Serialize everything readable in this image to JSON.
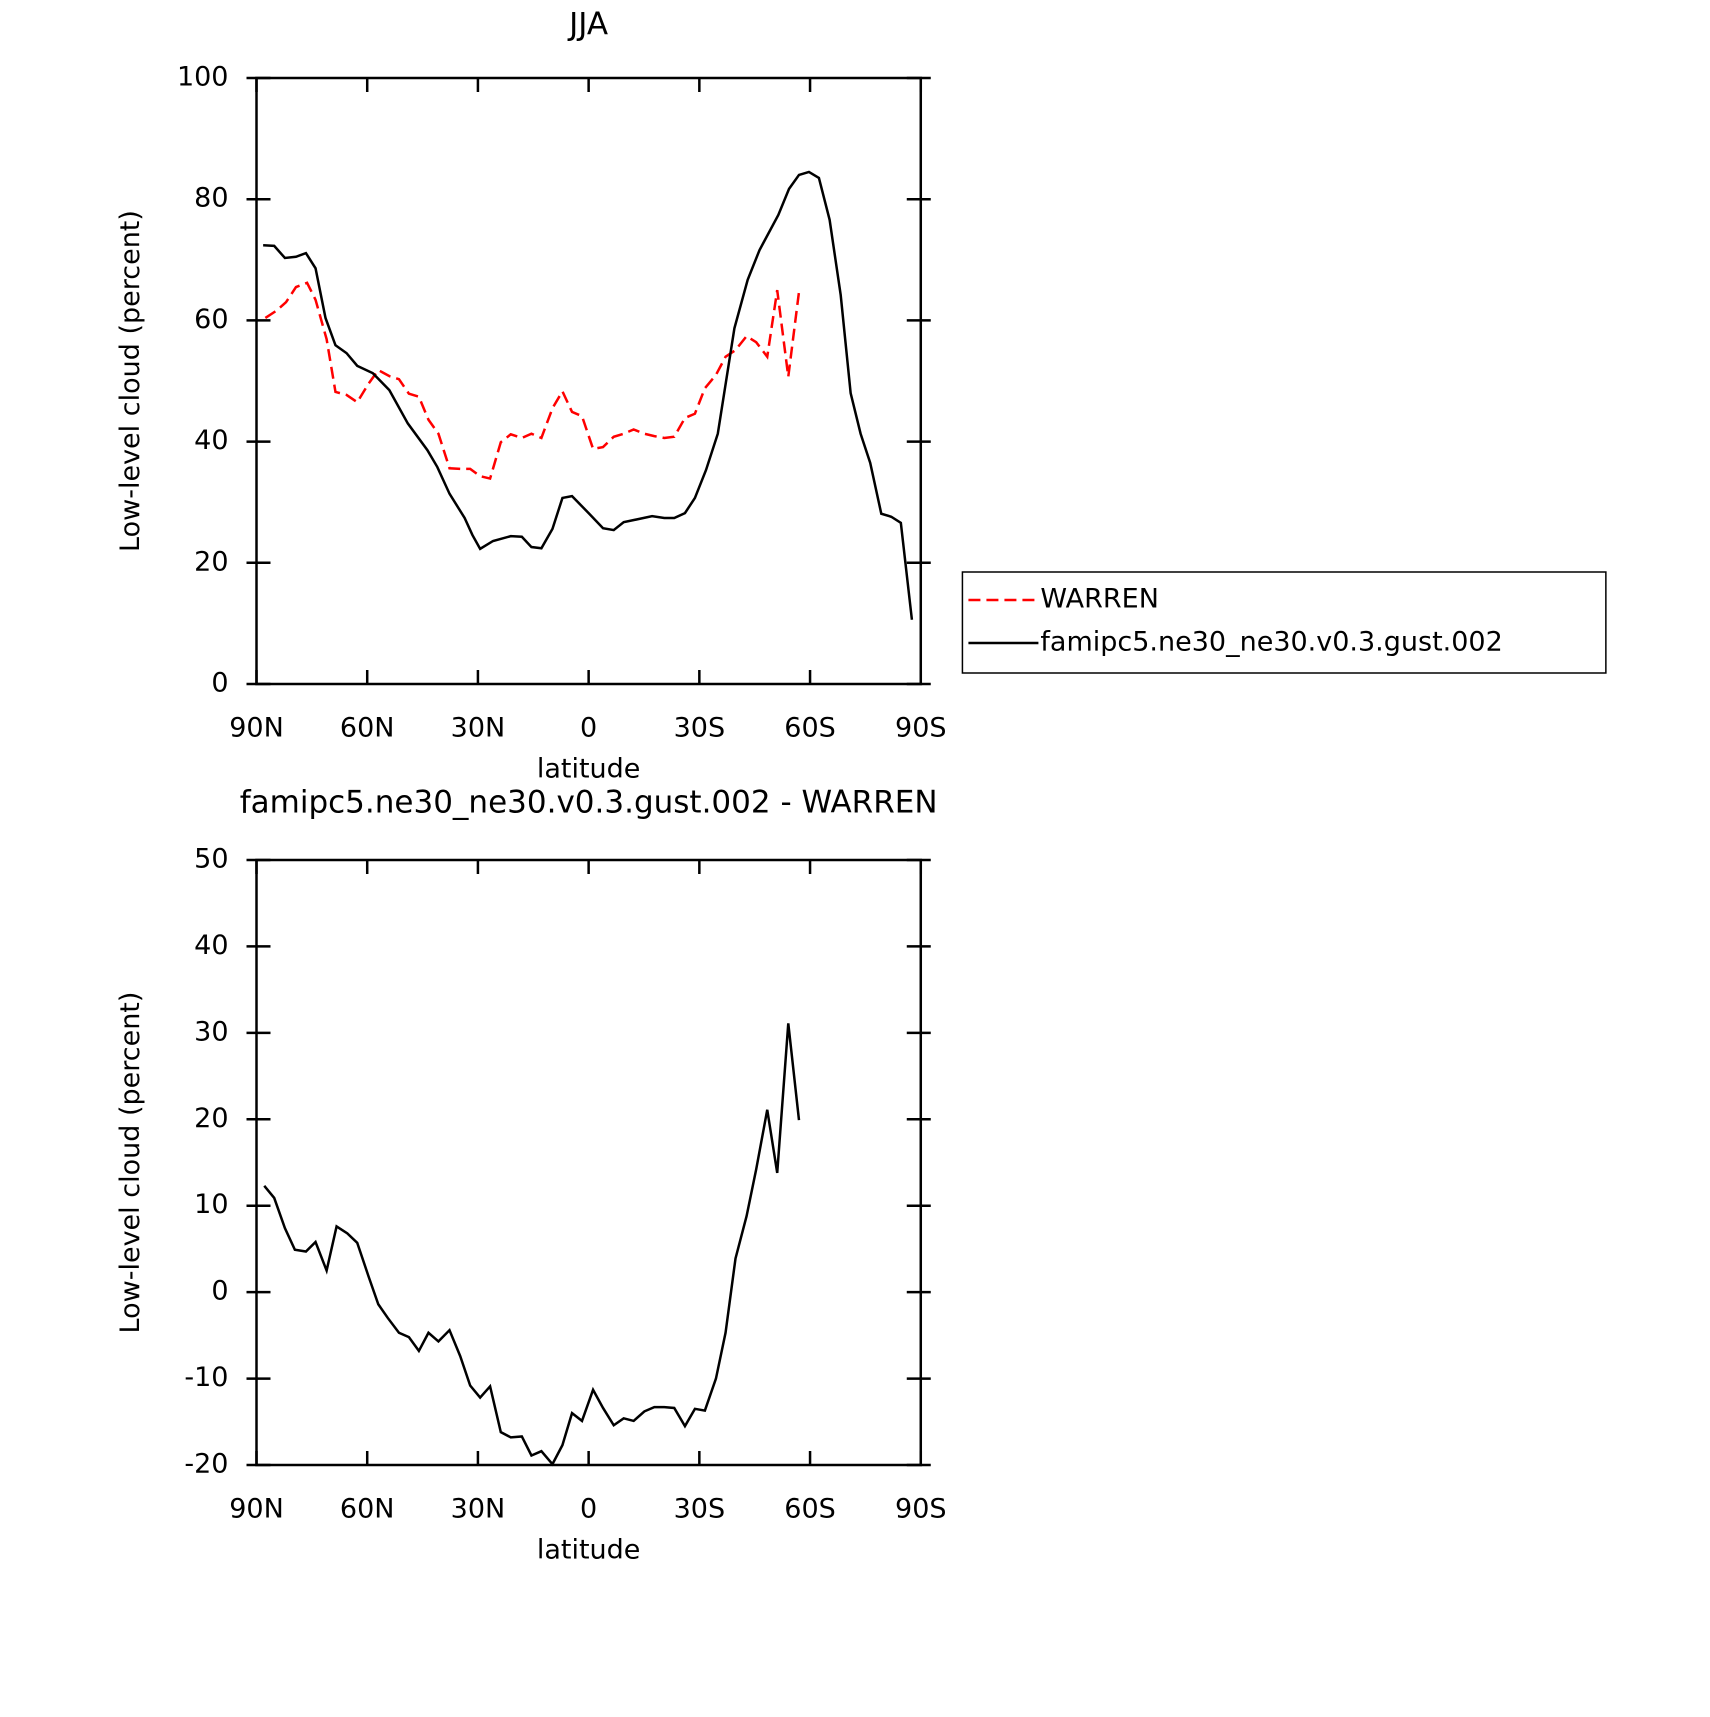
{
  "chart_data": [
    {
      "type": "line",
      "title": "JJA",
      "xlabel": "latitude",
      "ylabel": "Low-level cloud (percent)",
      "xlim": [
        90,
        -90
      ],
      "xticks": [
        {
          "value": 90,
          "label": "90N"
        },
        {
          "value": 60,
          "label": "60N"
        },
        {
          "value": 30,
          "label": "30N"
        },
        0,
        {
          "value": -30,
          "label": "30S"
        },
        {
          "value": -60,
          "label": "60S"
        },
        {
          "value": -90,
          "label": "90S"
        }
      ],
      "ylim": [
        0,
        100
      ],
      "yticks": [
        0,
        20,
        40,
        60,
        80,
        100
      ],
      "legend": "right",
      "series": [
        {
          "name": "WARREN",
          "color": "#ff0000",
          "dashed": true,
          "x": [
            87.6,
            84.6,
            82,
            79.3,
            76.3,
            74,
            71,
            68.6,
            65.6,
            62.7,
            59.7,
            57,
            54,
            51.4,
            48.7,
            46,
            43.4,
            40.7,
            37.7,
            34.8,
            32.1,
            29.4,
            26.7,
            23.8,
            21.1,
            18.1,
            15.5,
            12.8,
            9.8,
            7.1,
            4.5,
            1.8,
            -1.2,
            -3.9,
            -6.8,
            -9.5,
            -12.2,
            -15.1,
            -17.8,
            -20.5,
            -23.2,
            -26.1,
            -28.8,
            -31.5,
            -34.5,
            -37.1,
            -39.8,
            -42.8,
            -45.4,
            -48.4,
            -51.1,
            -54.1,
            -57
          ],
          "values": [
            60.4,
            61.6,
            63,
            65.5,
            66.2,
            63.4,
            56.9,
            48.2,
            47.7,
            46.5,
            49.5,
            51.8,
            50.8,
            50.3,
            47.9,
            47.4,
            43.6,
            41.3,
            35.6,
            35.5,
            35.5,
            34.3,
            33.9,
            39.9,
            41.2,
            40.6,
            41.3,
            40.6,
            45.5,
            48.3,
            44.9,
            44.2,
            38.8,
            39.1,
            40.8,
            41.3,
            42,
            41.3,
            40.9,
            40.6,
            40.8,
            43.9,
            44.6,
            48.8,
            51,
            54,
            55.1,
            57.4,
            56.4,
            54,
            65,
            50.7,
            64.7
          ]
        },
        {
          "name": "famipc5.ne30_ne30.v0.3.gust.002",
          "color": "#000000",
          "dashed": false,
          "x": [
            88.2,
            85.2,
            82.3,
            79.3,
            76.6,
            74,
            71.3,
            68.6,
            65.6,
            62.7,
            58.5,
            54,
            49,
            43.7,
            41,
            37.7,
            33.6,
            31.5,
            29.4,
            25.9,
            21.1,
            18.1,
            15.5,
            12.8,
            9.8,
            7.1,
            4.5,
            0,
            -3.9,
            -6.8,
            -9.5,
            -17.2,
            -20.5,
            -23.2,
            -26.1,
            -28.8,
            -31.8,
            -35,
            -39.5,
            -43.1,
            -46.3,
            -51.4,
            -54.3,
            -57,
            -59.7,
            -62.4,
            -65.3,
            -68.3,
            -71,
            -73.7,
            -76.3,
            -79.3,
            -82,
            -84.6,
            -87.6
          ],
          "values": [
            72.4,
            72.3,
            70.3,
            70.5,
            71.1,
            68.6,
            60.4,
            55.9,
            54.6,
            52.5,
            51.3,
            48.5,
            43,
            38.6,
            35.8,
            31.4,
            27.4,
            24.6,
            22.3,
            23.6,
            24.4,
            24.3,
            22.6,
            22.4,
            25.6,
            30.7,
            31,
            28.2,
            25.7,
            25.4,
            26.7,
            27.7,
            27.4,
            27.4,
            28.2,
            30.7,
            35.3,
            41.3,
            58.7,
            66.7,
            71.6,
            77.4,
            81.7,
            84,
            84.5,
            83.5,
            76.6,
            64.2,
            48,
            41.3,
            36.5,
            28.1,
            27.6,
            26.6,
            10.6
          ]
        }
      ]
    },
    {
      "type": "line",
      "title": "famipc5.ne30_ne30.v0.3.gust.002 - WARREN",
      "xlabel": "latitude",
      "ylabel": "Low-level cloud (percent)",
      "xlim": [
        90,
        -90
      ],
      "xticks": [
        {
          "value": 90,
          "label": "90N"
        },
        {
          "value": 60,
          "label": "60N"
        },
        {
          "value": 30,
          "label": "30N"
        },
        0,
        {
          "value": -30,
          "label": "30S"
        },
        {
          "value": -60,
          "label": "60S"
        },
        {
          "value": -90,
          "label": "90S"
        }
      ],
      "ylim": [
        -20,
        50
      ],
      "yticks": [
        -20,
        -10,
        0,
        10,
        20,
        30,
        40,
        50
      ],
      "series": [
        {
          "color": "#000000",
          "dashed": false,
          "x": [
            87.9,
            85.2,
            82.3,
            79.6,
            76.6,
            74,
            71,
            68.3,
            65.4,
            62.7,
            59.7,
            57,
            54.4,
            51.4,
            48.7,
            46,
            43.4,
            40.7,
            37.7,
            34.8,
            32.1,
            29.4,
            26.7,
            23.8,
            21.1,
            18.1,
            15.5,
            12.8,
            9.8,
            7.1,
            4.5,
            1.8,
            -1.2,
            -3.9,
            -6.8,
            -9.5,
            -12.2,
            -15.1,
            -17.8,
            -20.5,
            -23.2,
            -26.1,
            -28.8,
            -31.5,
            -34.5,
            -37.1,
            -39.8,
            -42.8,
            -45.4,
            -48.4,
            -51.1,
            -54.1,
            -57
          ],
          "values": [
            12.3,
            10.9,
            7.4,
            4.9,
            4.7,
            5.8,
            2.5,
            7.6,
            6.8,
            5.7,
            1.9,
            -1.4,
            -3,
            -4.7,
            -5.2,
            -6.8,
            -4.7,
            -5.7,
            -4.4,
            -7.4,
            -10.8,
            -12.2,
            -10.9,
            -16.2,
            -16.8,
            -16.7,
            -18.9,
            -18.4,
            -19.9,
            -17.7,
            -14,
            -14.9,
            -11.3,
            -13.4,
            -15.4,
            -14.6,
            -14.9,
            -13.8,
            -13.3,
            -13.3,
            -13.4,
            -15.5,
            -13.5,
            -13.7,
            -10,
            -4.7,
            3.9,
            8.8,
            14.2,
            21.1,
            13.8,
            31.1,
            19.9
          ]
        }
      ]
    }
  ]
}
